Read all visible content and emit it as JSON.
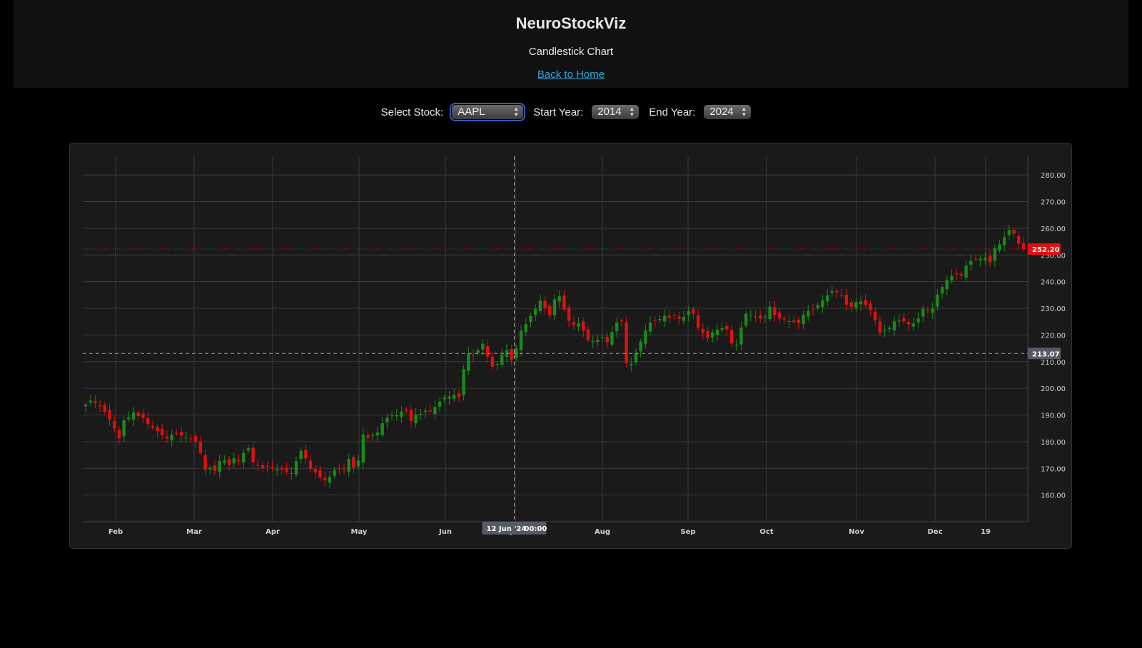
{
  "header": {
    "title": "NeuroStockViz",
    "subtitle": "Candlestick Chart",
    "home_link": "Back to Home"
  },
  "controls": {
    "stock_label": "Select Stock:",
    "stock_value": "AAPL",
    "start_label": "Start Year:",
    "start_value": "2014",
    "end_label": "End Year:",
    "end_value": "2024"
  },
  "colors": {
    "up": "#1b8a1b",
    "down": "#e01010",
    "last_price_badge": "#e01010",
    "crosshair_badge": "#555a66"
  },
  "chart_data": {
    "type": "candlestick",
    "title": "",
    "y_range": [
      150,
      287
    ],
    "y_ticks": [
      "160.00",
      "170.00",
      "180.00",
      "190.00",
      "200.00",
      "210.00",
      "220.00",
      "230.00",
      "240.00",
      "250.00",
      "260.00",
      "270.00",
      "280.00"
    ],
    "x_ticks": [
      "Feb",
      "Mar",
      "Apr",
      "May",
      "Jun",
      "Jul",
      "Aug",
      "Sep",
      "Oct",
      "Nov",
      "Dec",
      "19"
    ],
    "last_price": "252.20",
    "crosshair_price": "213.07",
    "crosshair_date": "12 Jun '24",
    "crosshair_time": "00:00",
    "crosshair_day": 0.457,
    "closes": [
      193.9,
      195.4,
      194.5,
      193.3,
      191.2,
      188.3,
      185.0,
      181.2,
      188.0,
      189.1,
      191.0,
      189.6,
      188.9,
      186.7,
      185.2,
      184.0,
      182.4,
      181.2,
      182.6,
      183.1,
      182.3,
      181.5,
      181.2,
      180.0,
      175.8,
      169.5,
      170.2,
      169.1,
      172.8,
      173.0,
      171.3,
      173.8,
      172.6,
      175.8,
      177.5,
      172.2,
      171.0,
      170.1,
      170.7,
      170.0,
      169.7,
      169.6,
      168.8,
      168.2,
      172.7,
      176.6,
      173.7,
      169.8,
      168.5,
      166.6,
      165.5,
      166.8,
      169.4,
      170.0,
      169.3,
      173.5,
      170.3,
      173.0,
      182.7,
      181.4,
      182.4,
      183.4,
      186.9,
      189.0,
      190.0,
      189.9,
      191.3,
      191.5,
      187.7,
      190.2,
      190.3,
      191.6,
      191.3,
      193.0,
      195.0,
      196.5,
      196.9,
      197.5,
      196.8,
      207.2,
      213.1,
      212.5,
      214.3,
      216.7,
      211.9,
      208.1,
      209.1,
      212.7,
      214.3,
      210.7,
      215.0,
      221.6,
      224.1,
      227.1,
      229.8,
      232.9,
      230.0,
      227.4,
      233.4,
      234.5,
      229.6,
      225.3,
      223.8,
      224.4,
      221.6,
      218.1,
      217.7,
      218.2,
      219.2,
      217.3,
      221.2,
      224.7,
      225.1,
      209.5,
      209.2,
      213.3,
      217.5,
      221.7,
      224.7,
      225.4,
      226.0,
      227.2,
      226.5,
      227.2,
      226.1,
      226.8,
      229.0,
      228.0,
      222.8,
      220.7,
      218.8,
      220.9,
      222.0,
      222.5,
      222.1,
      216.8,
      216.1,
      222.8,
      228.0,
      227.6,
      226.6,
      226.2,
      226.8,
      230.6,
      227.5,
      226.2,
      225.8,
      225.2,
      224.9,
      224.5,
      227.6,
      229.0,
      229.6,
      231.3,
      233.0,
      234.9,
      236.4,
      236.0,
      235.0,
      231.4,
      230.6,
      232.3,
      232.6,
      231.2,
      229.4,
      225.6,
      220.8,
      222.0,
      222.6,
      225.1,
      225.4,
      225.1,
      224.0,
      224.3,
      226.2,
      229.8,
      228.9,
      229.9,
      235.1,
      238.0,
      240.6,
      242.2,
      243.0,
      242.4,
      246.0,
      247.8,
      248.5,
      248.6,
      248.9,
      247.3,
      252.6,
      254.0,
      256.6,
      259.3,
      258.0,
      254.2,
      252.2
    ]
  }
}
